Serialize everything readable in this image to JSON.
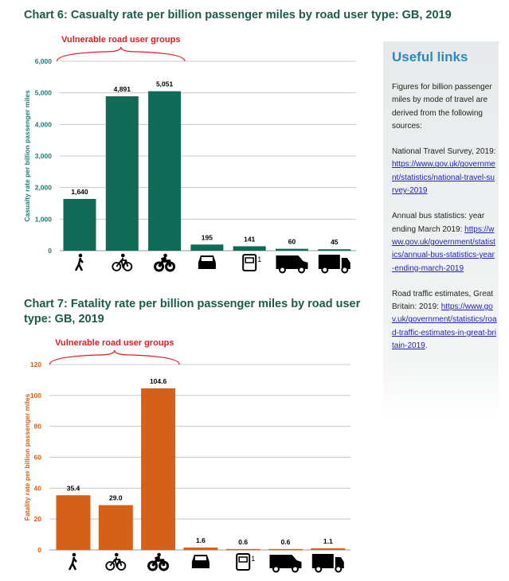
{
  "chart_data": [
    {
      "type": "bar",
      "title": "Chart 6:  Casualty rate per billion passenger miles by road user type: GB, 2019",
      "ylabel": "Casualty rate per billion passenger miles",
      "xlabel": "",
      "ylim": [
        0,
        6000
      ],
      "yticks": [
        0,
        1000,
        2000,
        3000,
        4000,
        5000,
        6000
      ],
      "ytick_labels": [
        "0",
        "1,000",
        "2,000",
        "3,000",
        "4,000",
        "5,000",
        "6,000"
      ],
      "categories": [
        "pedestrian",
        "pedal cyclist",
        "motorcyclist",
        "car",
        "bus",
        "van",
        "goods vehicle"
      ],
      "icons": [
        "pedestrian-icon",
        "bicycle-icon",
        "motorcycle-icon",
        "car-icon",
        "bus-icon",
        "van-icon",
        "lorry-icon"
      ],
      "bus_footnote": "1",
      "values": [
        1640,
        4891,
        5051,
        195,
        141,
        60,
        45
      ],
      "value_labels": [
        "1,640",
        "4,891",
        "5,051",
        "195",
        "141",
        "60",
        "45"
      ],
      "annotation": "Vulnerable road user groups",
      "color": "#0f6b55",
      "axis_color": "#1d7a7a"
    },
    {
      "type": "bar",
      "title": "Chart 7:  Fatality rate per billion passenger miles by road user type: GB, 2019",
      "ylabel": "Fatality rate per billion passenger miles",
      "xlabel": "",
      "ylim": [
        0,
        120
      ],
      "yticks": [
        0,
        20,
        40,
        60,
        80,
        100,
        120
      ],
      "ytick_labels": [
        "0",
        "20",
        "40",
        "60",
        "80",
        "100",
        "120"
      ],
      "categories": [
        "pedestrian",
        "pedal cyclist",
        "motorcyclist",
        "car",
        "bus",
        "van",
        "goods vehicle"
      ],
      "icons": [
        "pedestrian-icon",
        "bicycle-icon",
        "motorcycle-icon",
        "car-icon",
        "bus-icon",
        "van-icon",
        "lorry-icon"
      ],
      "bus_footnote": "1",
      "values": [
        35.4,
        29.0,
        104.6,
        1.6,
        0.6,
        0.6,
        1.1
      ],
      "value_labels": [
        "35.4",
        "29.0",
        "104.6",
        "1.6",
        "0.6",
        "0.6",
        "1.1"
      ],
      "annotation": "Vulnerable road user groups",
      "color": "#d4601a",
      "axis_color": "#d4601a"
    }
  ],
  "sidebar": {
    "title": "Useful links",
    "intro": "Figures for billion passenger miles by mode of travel are derived from the following sources:",
    "sources": [
      {
        "text": "National Travel Survey, 2019: ",
        "link": "https://www.gov.uk/government/statistics/national-travel-survey-2019"
      },
      {
        "text": "Annual bus statistics: year ending March 2019: ",
        "link": "https://www.gov.uk/government/statistics/annual-bus-statistics-year-ending-march-2019"
      },
      {
        "text": "Road traffic estimates, Great Britain: 2019: ",
        "link": "https://www.gov.uk/government/statistics/road-traffic-estimates-in-great-britain-2019",
        "suffix": "."
      }
    ]
  }
}
